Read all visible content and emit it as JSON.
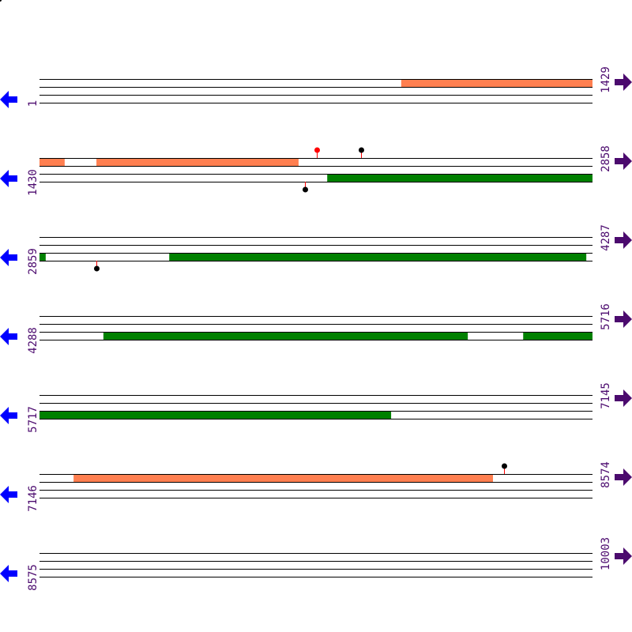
{
  "track": {
    "bases_per_row": 1429,
    "strand_colors": {
      "forward": "#ff7f50",
      "reverse": "#008000"
    },
    "arrow_colors": {
      "left": "#0000ff",
      "right": "#4b0a6e"
    },
    "marker_colors": {
      "red": "#ff0000",
      "black": "#000000"
    }
  },
  "rows": [
    {
      "start": "1",
      "end": "1429",
      "s": 1,
      "features": [
        {
          "strand": "forward",
          "from": 935,
          "to": 1429
        }
      ],
      "markers": []
    },
    {
      "start": "1430",
      "end": "2858",
      "s": 1430,
      "features": [
        {
          "strand": "forward",
          "from": 1430,
          "to": 1495
        },
        {
          "strand": "forward",
          "from": 1577,
          "to": 2099
        },
        {
          "strand": "reverse",
          "from": 2173,
          "to": 2858
        }
      ],
      "markers": [
        {
          "pos": 2146,
          "side": "top",
          "color": "red"
        },
        {
          "pos": 2260,
          "side": "top",
          "color": "black"
        },
        {
          "pos": 2115,
          "side": "bottom",
          "color": "black"
        }
      ]
    },
    {
      "start": "2859",
      "end": "4287",
      "s": 2859,
      "features": [
        {
          "strand": "reverse",
          "from": 2859,
          "to": 2875
        },
        {
          "strand": "reverse",
          "from": 3194,
          "to": 4271
        }
      ],
      "markers": [
        {
          "pos": 3006,
          "side": "bottom",
          "color": "black"
        }
      ]
    },
    {
      "start": "4288",
      "end": "5716",
      "s": 4288,
      "features": [
        {
          "strand": "reverse",
          "from": 4453,
          "to": 5394
        },
        {
          "strand": "reverse",
          "from": 5537,
          "to": 5716
        }
      ],
      "markers": []
    },
    {
      "start": "5717",
      "end": "7145",
      "s": 5717,
      "features": [
        {
          "strand": "reverse",
          "from": 5717,
          "to": 6625
        }
      ],
      "markers": []
    },
    {
      "start": "7146",
      "end": "8574",
      "s": 7146,
      "features": [
        {
          "strand": "forward",
          "from": 7234,
          "to": 8317
        }
      ],
      "markers": [
        {
          "pos": 8346,
          "side": "top",
          "color": "black"
        }
      ]
    },
    {
      "start": "8575",
      "end": "10003",
      "s": 8575,
      "features": [],
      "markers": []
    }
  ]
}
